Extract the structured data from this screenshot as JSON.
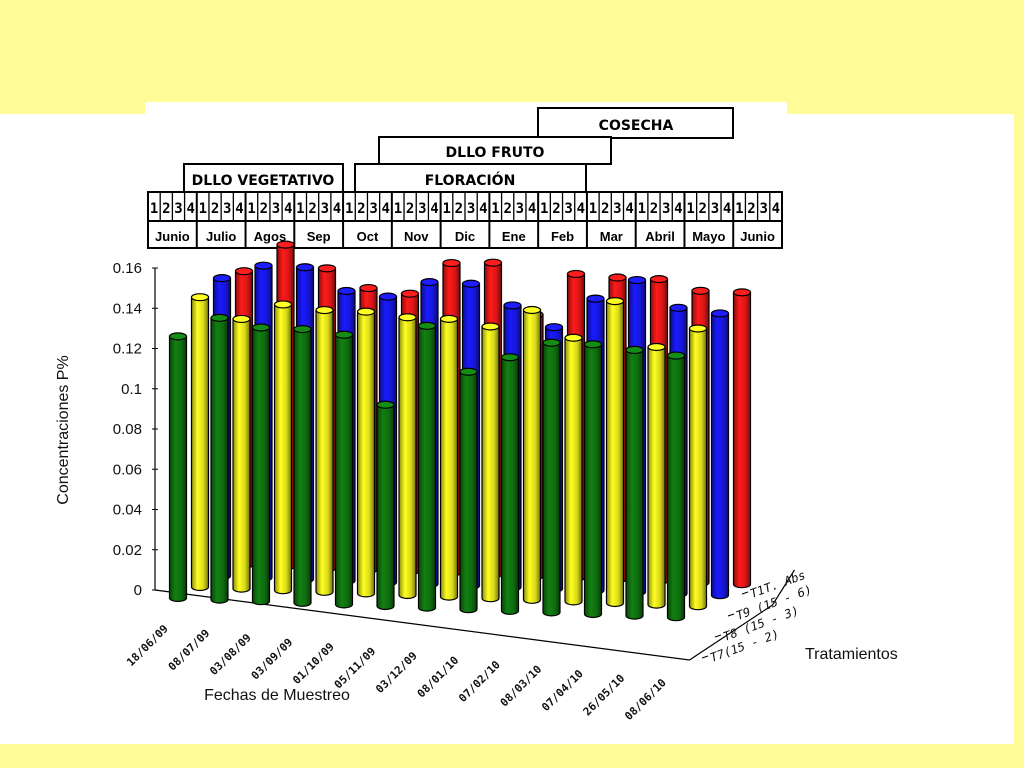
{
  "colors": {
    "background": "#fffb96",
    "panel": "#ffffff",
    "T1": "#ff1a1a",
    "T9": "#1a1aff",
    "T8": "#ffff20",
    "T7": "#128012"
  },
  "phases": {
    "cosecha": "COSECHA",
    "fruto": "DLLO  FRUTO",
    "vegetativo": "DLLO VEGETATIVO",
    "floracion": "FLORACIÓN"
  },
  "week_numbers": [
    "1",
    "2",
    "3",
    "4"
  ],
  "months": [
    "Junio",
    "Julio",
    "Agos",
    "Sep",
    "Oct",
    "Nov",
    "Dic",
    "Ene",
    "Feb",
    "Mar",
    "Abril",
    "Mayo",
    "Junio"
  ],
  "chart_data": {
    "type": "bar",
    "title": "",
    "ylabel": "Concentraciones P%",
    "xlabel": "Fechas de Muestreo",
    "zlabel": "Tratamientos",
    "ylim": [
      0,
      0.16
    ],
    "yticks": [
      "0",
      "0.02",
      "0.04",
      "0.06",
      "0.08",
      "0.1",
      "0.12",
      "0.14",
      "0.16"
    ],
    "categories": [
      "18/06/09",
      "08/07/09",
      "03/08/09",
      "03/09/09",
      "01/10/09",
      "05/11/09",
      "03/12/09",
      "08/01/10",
      "07/02/10",
      "08/03/10",
      "07/04/10",
      "26/05/10",
      "08/06/10"
    ],
    "series": [
      {
        "name": "T7(15 - 2)",
        "color_key": "T7",
        "values": [
          0.13,
          0.14,
          0.136,
          0.136,
          0.134,
          0.1,
          0.14,
          0.118,
          0.126,
          0.134,
          0.134,
          0.132,
          0.13
        ]
      },
      {
        "name": "T8 (15 - 3)",
        "color_key": "T8",
        "values": [
          0.144,
          0.134,
          0.142,
          0.14,
          0.14,
          0.138,
          0.138,
          0.135,
          0.144,
          0.131,
          0.15,
          0.128,
          0.138
        ]
      },
      {
        "name": "T9 (15 - 6)",
        "color_key": "T9",
        "values": [
          0.148,
          0.155,
          0.155,
          0.144,
          0.142,
          0.15,
          0.15,
          0.14,
          0.13,
          0.145,
          0.155,
          0.142,
          0.14
        ]
      },
      {
        "name": "T1T. Abs",
        "color_key": "T1",
        "values": [
          0.146,
          0.16,
          0.149,
          0.14,
          0.138,
          0.154,
          0.155,
          0.13,
          0.151,
          0.15,
          0.15,
          0.145,
          0.145
        ]
      }
    ]
  }
}
